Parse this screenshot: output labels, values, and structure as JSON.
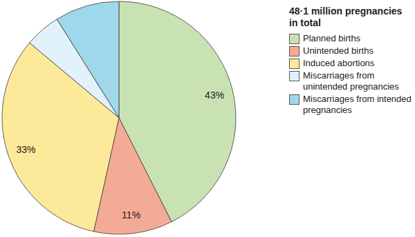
{
  "chart_data": {
    "type": "pie",
    "title": "48·1 million pregnancies in total",
    "categories": [
      "Planned births",
      "Unintended births",
      "Induced abortions",
      "Miscarriages from unintended pregnancies",
      "Miscarriages from intended pregnancies"
    ],
    "values": [
      43,
      11,
      33,
      5,
      9
    ],
    "value_labels": [
      "43%",
      "11%",
      "33%",
      null,
      null
    ],
    "colors": [
      "#c9e2b3",
      "#f4ab95",
      "#fde99a",
      "#e2f2fa",
      "#9fd8ea"
    ],
    "data_labels": true,
    "legend": "upper right"
  }
}
